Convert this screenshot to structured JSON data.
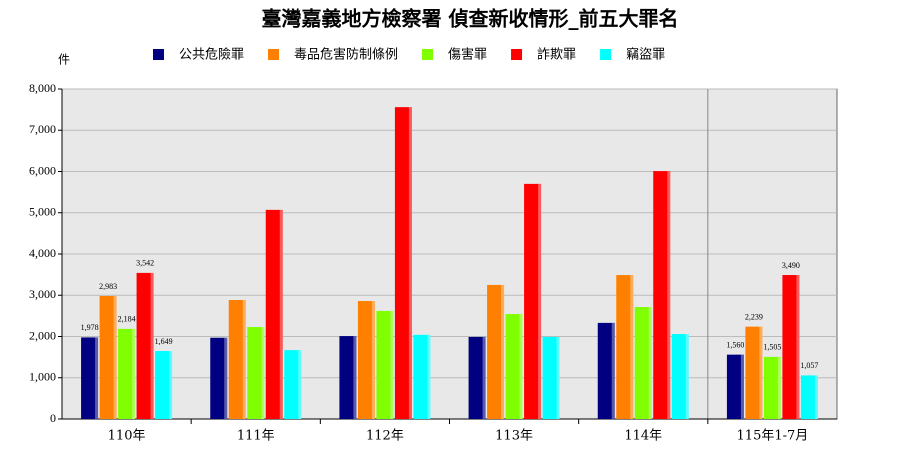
{
  "chart_data": {
    "type": "bar",
    "title": "臺灣嘉義地方檢察署 偵查新收情形_前五大罪名",
    "y_label": "件",
    "categories": [
      "110年",
      "111年",
      "112年",
      "113年",
      "114年",
      "115年1-7月"
    ],
    "series": [
      {
        "name": "公共危險罪",
        "color": "#000080",
        "values": [
          1978,
          1970,
          2010,
          1990,
          2330,
          1560
        ],
        "value_labels": [
          "1,978",
          null,
          null,
          null,
          null,
          "1,560"
        ]
      },
      {
        "name": "毒品危害防制條例",
        "color": "#ff8000",
        "values": [
          2983,
          2885,
          2860,
          3250,
          3490,
          2239
        ],
        "value_labels": [
          "2,983",
          null,
          null,
          null,
          null,
          "2,239"
        ]
      },
      {
        "name": "傷害罪",
        "color": "#80ff00",
        "values": [
          2184,
          2230,
          2620,
          2545,
          2715,
          1505
        ],
        "value_labels": [
          "2,184",
          null,
          null,
          null,
          null,
          "1,505"
        ]
      },
      {
        "name": "詐欺罪",
        "color": "#ff0000",
        "values": [
          3542,
          5070,
          7560,
          5700,
          6010,
          3490
        ],
        "value_labels": [
          "3,542",
          null,
          null,
          null,
          null,
          "3,490"
        ]
      },
      {
        "name": "竊盜罪",
        "color": "#00ffff",
        "values": [
          1649,
          1670,
          2040,
          1990,
          2060,
          1057
        ],
        "value_labels": [
          "1,649",
          null,
          null,
          null,
          null,
          "1,057"
        ]
      }
    ],
    "ylim": [
      0,
      8000
    ],
    "yticks": [
      0,
      {
        "value": 1000,
        "label": "1,000"
      },
      {
        "value": 2000,
        "label": "2,000"
      },
      {
        "value": 3000,
        "label": "3,000"
      },
      {
        "value": 4000,
        "label": "4,000"
      },
      {
        "value": 5000,
        "label": "5,000"
      },
      {
        "value": 6000,
        "label": "6,000"
      },
      {
        "value": 7000,
        "label": "7,000"
      },
      {
        "value": 8000,
        "label": "8,000"
      }
    ],
    "grid": true
  }
}
